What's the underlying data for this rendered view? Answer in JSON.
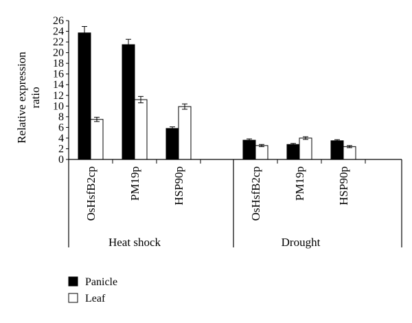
{
  "chart_data": {
    "type": "bar",
    "ylabel": "Relative expression ratio",
    "ylabel_lines": [
      "Relative expression",
      "ratio"
    ],
    "ylim": [
      0,
      26
    ],
    "yticks": [
      0,
      2,
      4,
      6,
      8,
      10,
      12,
      14,
      16,
      18,
      20,
      22,
      24,
      26
    ],
    "categories": [
      "OsHsfB2cp",
      "PM19p",
      "HSP90p",
      "OsHsfB2cp",
      "PM19p",
      "HSP90p"
    ],
    "groups": [
      {
        "label": "Heat shock",
        "categories": [
          "OsHsfB2cp",
          "PM19p",
          "HSP90p"
        ]
      },
      {
        "label": "Drought",
        "categories": [
          "OsHsfB2cp",
          "PM19p",
          "HSP90p"
        ]
      }
    ],
    "series": [
      {
        "name": "Panicle",
        "color": "#000000",
        "values": [
          23.7,
          21.5,
          5.8,
          3.6,
          2.8,
          3.5
        ],
        "errors": [
          1.2,
          1.0,
          0.3,
          0.25,
          0.2,
          0.2
        ]
      },
      {
        "name": "Leaf",
        "color": "#ffffff",
        "values": [
          7.5,
          11.2,
          9.9,
          2.6,
          4.0,
          2.4
        ],
        "errors": [
          0.4,
          0.6,
          0.5,
          0.2,
          0.25,
          0.2
        ]
      }
    ],
    "legend": {
      "placement": "bottom-left",
      "entries": [
        "Panicle",
        "Leaf"
      ]
    }
  }
}
